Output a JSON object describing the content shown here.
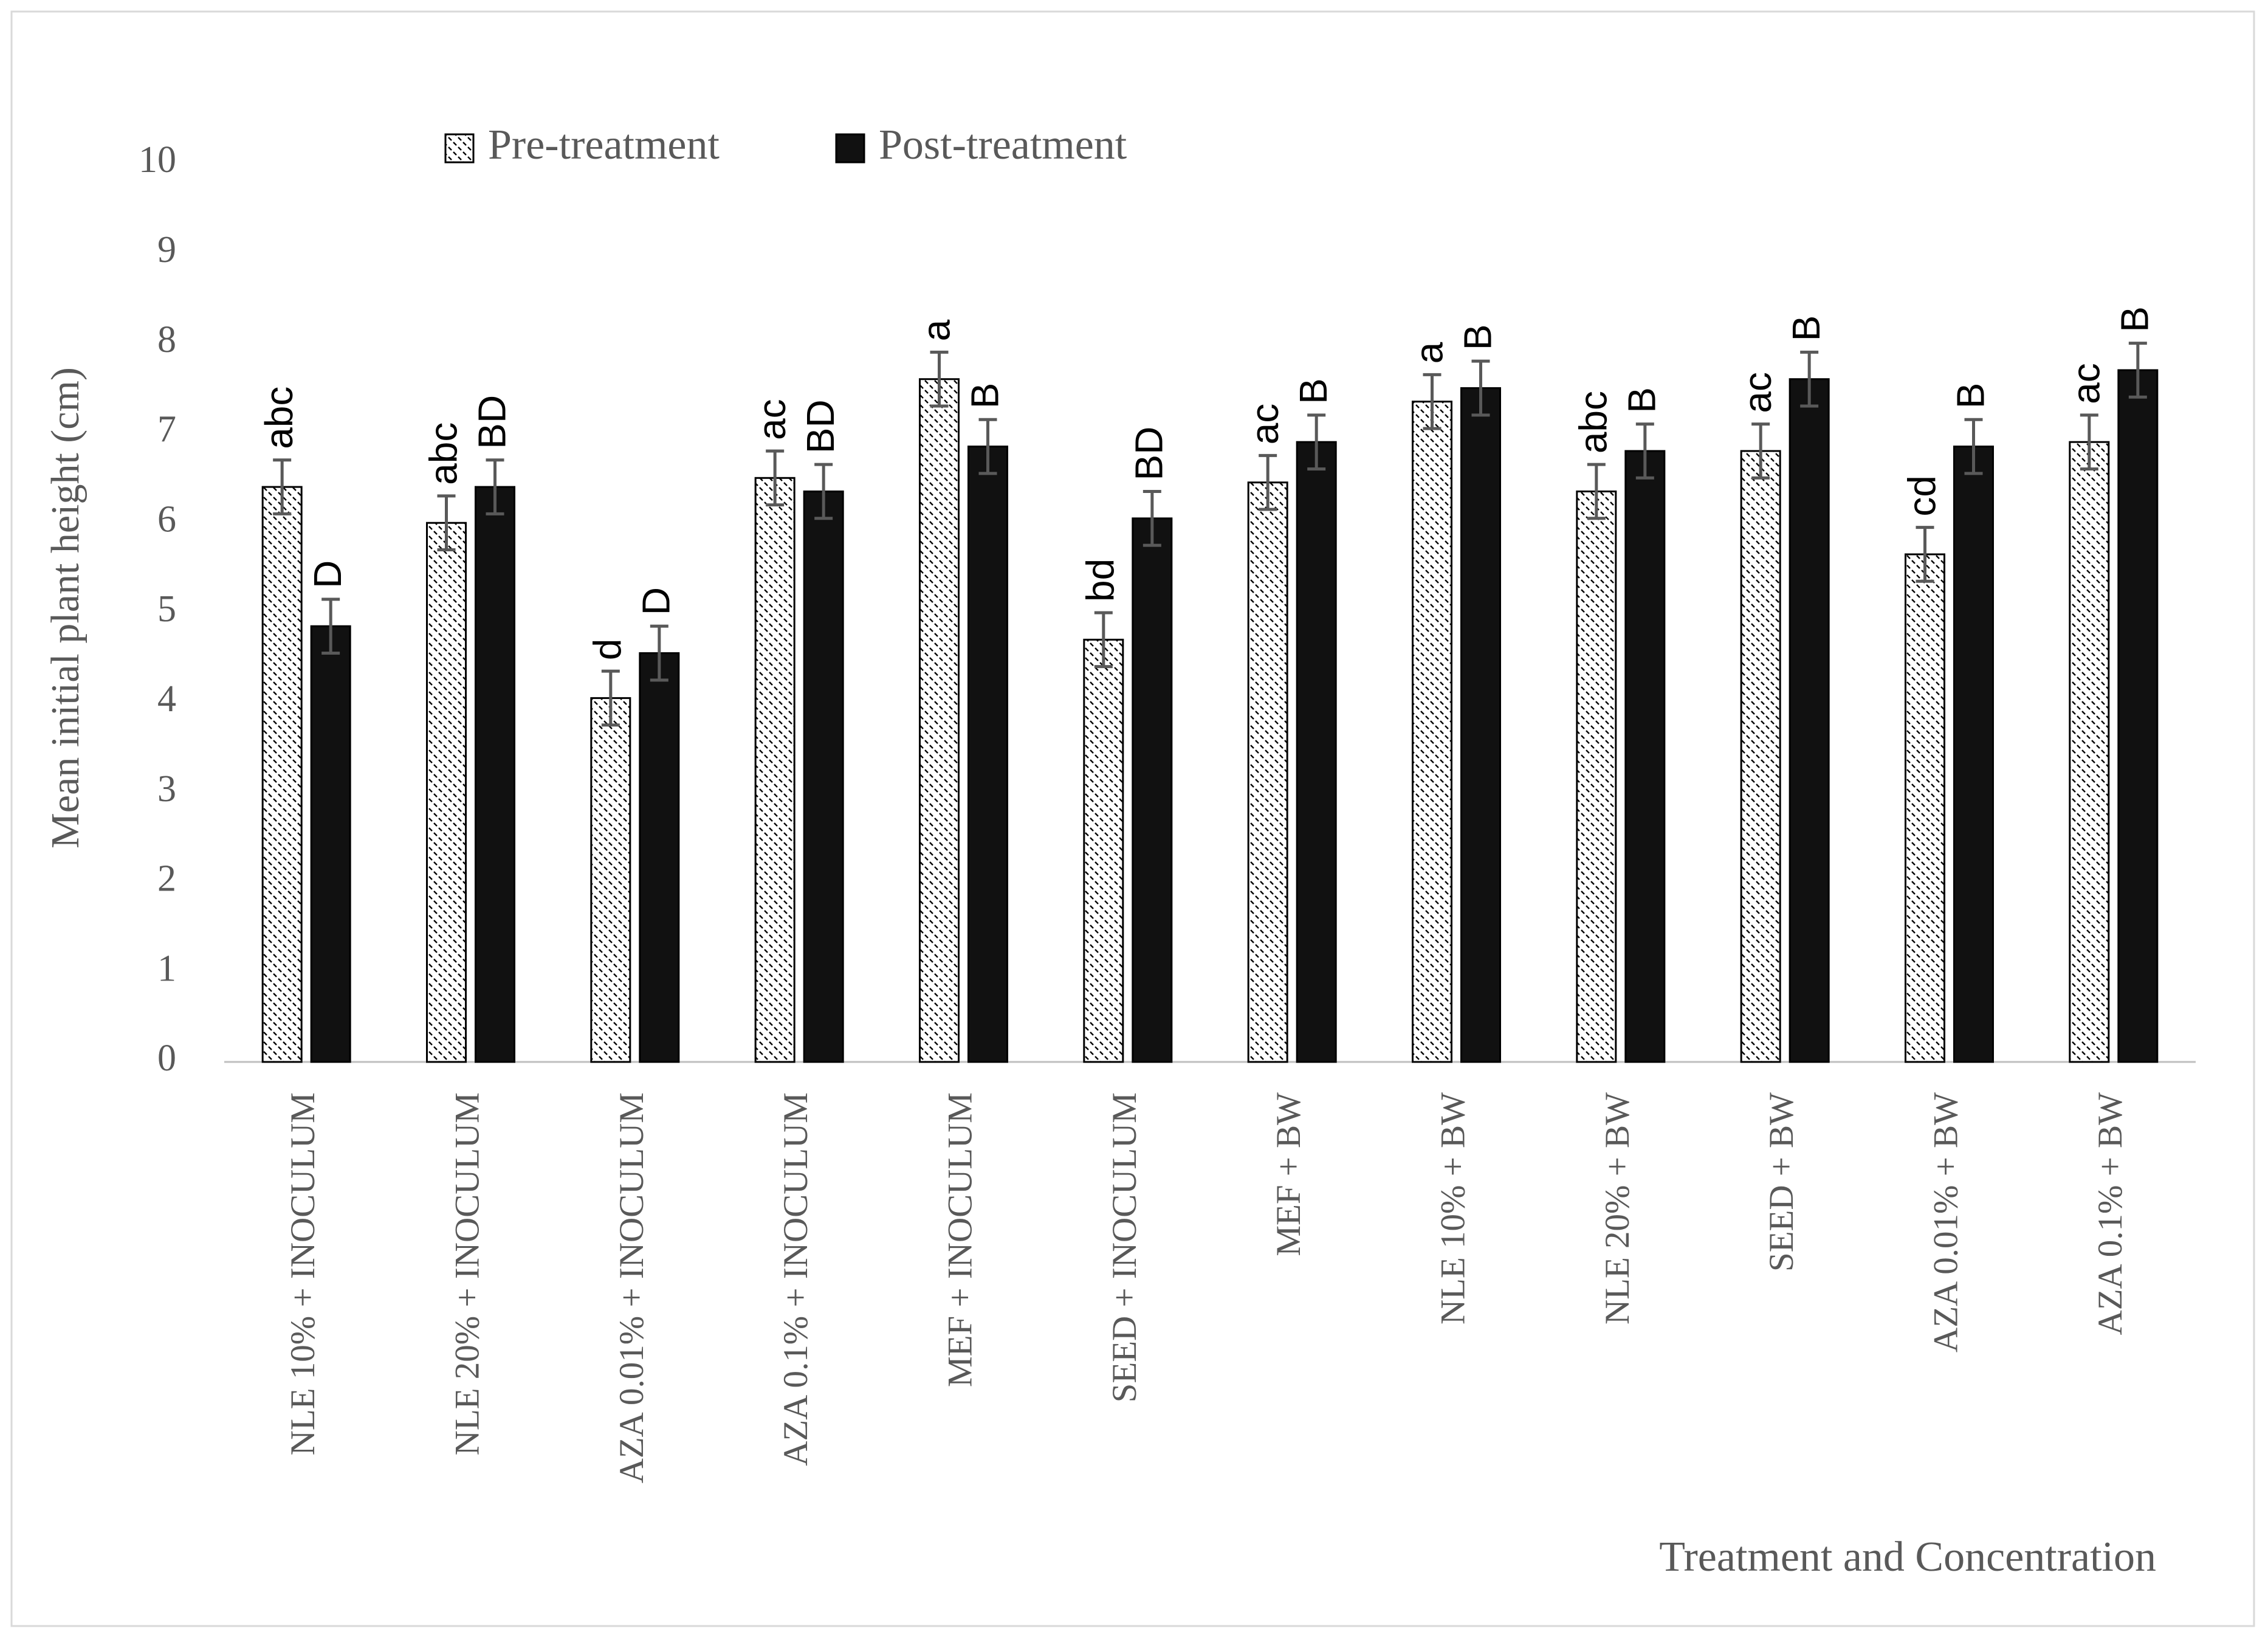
{
  "chart_data": {
    "type": "bar",
    "x_label": "Treatment and Concentration",
    "y_label": "Mean initial plant height (cm)",
    "categories": [
      "NLE 10% + INOCULUM",
      "NLE 20% + INOCULUM",
      "AZA 0.01% + INOCULUM",
      "AZA 0.1% + INOCULUM",
      "MEF + INOCULUM",
      "SEED + INOCULUM",
      "MEF + BW",
      "NLE 10% + BW",
      "NLE 20% + BW",
      "SEED + BW",
      "AZA 0.01% + BW",
      "AZA 0.1% + BW"
    ],
    "series": [
      {
        "name": "Pre-treatment",
        "color": "#ffffff",
        "pattern": "hatch",
        "values": [
          6.4,
          6.0,
          4.05,
          6.5,
          7.6,
          4.7,
          6.45,
          7.35,
          6.35,
          6.8,
          5.65,
          6.9
        ],
        "errors": [
          0.3,
          0.3,
          0.3,
          0.3,
          0.3,
          0.3,
          0.3,
          0.3,
          0.3,
          0.3,
          0.3,
          0.3
        ],
        "letters": [
          "abc",
          "abc",
          "d",
          "ac",
          "a",
          "bd",
          "ac",
          "a",
          "abc",
          "ac",
          "cd",
          "ac"
        ]
      },
      {
        "name": "Post-treatment",
        "color": "#111111",
        "values": [
          4.85,
          6.4,
          4.55,
          6.35,
          6.85,
          6.05,
          6.9,
          7.5,
          6.8,
          7.6,
          6.85,
          7.7
        ],
        "errors": [
          0.3,
          0.3,
          0.3,
          0.3,
          0.3,
          0.3,
          0.3,
          0.3,
          0.3,
          0.3,
          0.3,
          0.3
        ],
        "letters": [
          "D",
          "BD",
          "D",
          "BD",
          "B",
          "BD",
          "B",
          "B",
          "B",
          "B",
          "B",
          "B"
        ]
      }
    ],
    "ylim": [
      0,
      10
    ],
    "yticks": [
      0,
      1,
      2,
      3,
      4,
      5,
      6,
      7,
      8,
      9,
      10
    ],
    "grid": false,
    "legend": "top",
    "error_color": "#595959"
  }
}
